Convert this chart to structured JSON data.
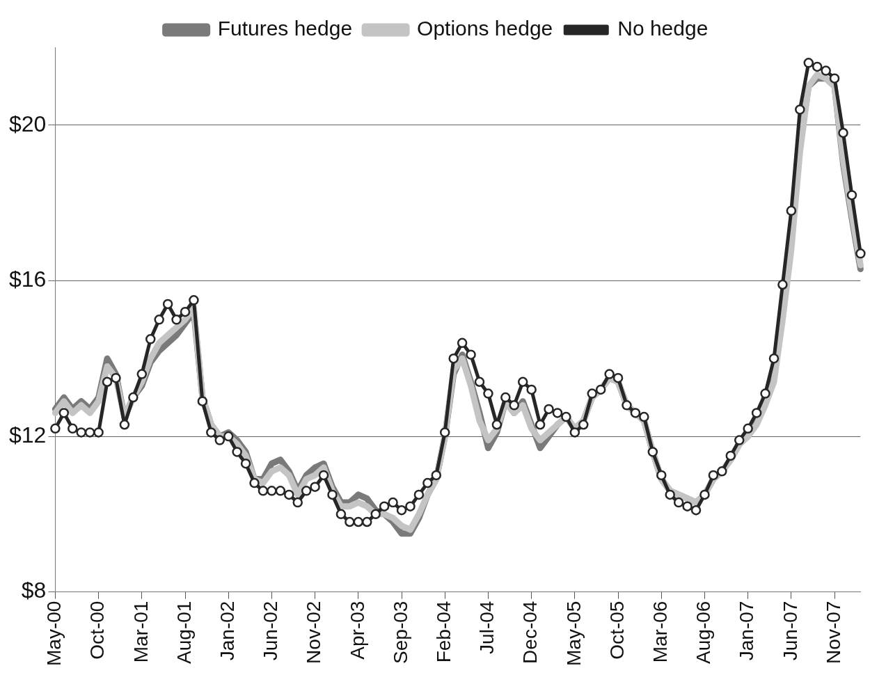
{
  "chart_data": {
    "type": "line",
    "categories": [
      "May-00",
      null,
      null,
      null,
      null,
      "Oct-00",
      null,
      null,
      null,
      null,
      "Mar-01",
      null,
      null,
      null,
      null,
      "Aug-01",
      null,
      null,
      null,
      null,
      "Jan-02",
      null,
      null,
      null,
      null,
      "Jun-02",
      null,
      null,
      null,
      null,
      "Nov-02",
      null,
      null,
      null,
      null,
      "Apr-03",
      null,
      null,
      null,
      null,
      "Sep-03",
      null,
      null,
      null,
      null,
      "Feb-04",
      null,
      null,
      null,
      null,
      "Jul-04",
      null,
      null,
      null,
      null,
      "Dec-04",
      null,
      null,
      null,
      null,
      "May-05",
      null,
      null,
      null,
      null,
      "Oct-05",
      null,
      null,
      null,
      null,
      "Mar-06",
      null,
      null,
      null,
      null,
      "Aug-06",
      null,
      null,
      null,
      null,
      "Jan-07",
      null,
      null,
      null,
      null,
      "Jun-07",
      null,
      null,
      null,
      null,
      "Nov-07",
      null,
      null,
      null
    ],
    "series": [
      {
        "name": "Futures hedge",
        "color": "#7a7a7a",
        "values": [
          12.7,
          13.0,
          12.7,
          12.9,
          12.7,
          13.0,
          14.0,
          13.6,
          12.5,
          13.0,
          13.3,
          13.9,
          14.2,
          14.4,
          14.6,
          14.9,
          15.2,
          13.0,
          12.3,
          12.0,
          12.1,
          11.9,
          11.6,
          10.9,
          10.9,
          11.3,
          11.4,
          11.1,
          10.6,
          11.0,
          11.2,
          11.3,
          10.7,
          10.3,
          10.3,
          10.5,
          10.4,
          10.1,
          10.0,
          9.8,
          9.5,
          9.5,
          9.9,
          10.5,
          10.9,
          12.0,
          13.6,
          14.1,
          13.4,
          12.6,
          11.7,
          12.1,
          12.9,
          12.6,
          12.9,
          12.3,
          11.7,
          12.0,
          12.3,
          12.5,
          12.2,
          12.4,
          13.0,
          13.2,
          13.5,
          13.4,
          12.8,
          12.6,
          12.4,
          11.6,
          10.9,
          10.6,
          10.5,
          10.4,
          10.3,
          10.5,
          10.9,
          11.1,
          11.4,
          11.8,
          12.0,
          12.4,
          12.9,
          13.6,
          15.3,
          17.0,
          19.5,
          21.0,
          21.2,
          21.2,
          21.0,
          19.0,
          17.6,
          16.3
        ]
      },
      {
        "name": "Options hedge",
        "color": "#c4c4c4",
        "values": [
          12.6,
          12.9,
          12.6,
          12.8,
          12.6,
          12.9,
          13.8,
          13.5,
          12.5,
          13.0,
          13.4,
          14.0,
          14.4,
          14.6,
          14.8,
          15.0,
          15.3,
          13.0,
          12.3,
          12.0,
          12.0,
          11.8,
          11.5,
          10.9,
          10.8,
          11.1,
          11.2,
          11.0,
          10.5,
          10.9,
          11.0,
          11.2,
          10.6,
          10.2,
          10.2,
          10.3,
          10.2,
          10.0,
          10.0,
          9.9,
          9.7,
          9.6,
          10.0,
          10.5,
          10.9,
          12.0,
          13.7,
          14.0,
          13.3,
          12.4,
          11.9,
          12.2,
          12.9,
          12.6,
          12.8,
          12.2,
          11.9,
          12.1,
          12.3,
          12.5,
          12.2,
          12.4,
          13.0,
          13.2,
          13.5,
          13.4,
          12.8,
          12.6,
          12.4,
          11.6,
          10.9,
          10.6,
          10.5,
          10.4,
          10.3,
          10.5,
          10.9,
          11.1,
          11.4,
          11.8,
          12.0,
          12.3,
          12.8,
          13.4,
          15.0,
          16.8,
          19.3,
          21.0,
          21.3,
          21.2,
          21.0,
          19.1,
          17.7,
          16.4
        ]
      },
      {
        "name": "No hedge",
        "color": "#262626",
        "marker": "circle",
        "values": [
          12.2,
          12.6,
          12.2,
          12.1,
          12.1,
          12.1,
          13.4,
          13.5,
          12.3,
          13.0,
          13.6,
          14.5,
          15.0,
          15.4,
          15.0,
          15.2,
          15.5,
          12.9,
          12.1,
          11.9,
          12.0,
          11.6,
          11.3,
          10.8,
          10.6,
          10.6,
          10.6,
          10.5,
          10.3,
          10.6,
          10.7,
          11.0,
          10.5,
          10.0,
          9.8,
          9.8,
          9.8,
          10.0,
          10.2,
          10.3,
          10.1,
          10.2,
          10.5,
          10.8,
          11.0,
          12.1,
          14.0,
          14.4,
          14.1,
          13.4,
          13.1,
          12.3,
          13.0,
          12.8,
          13.4,
          13.2,
          12.3,
          12.7,
          12.6,
          12.5,
          12.1,
          12.3,
          13.1,
          13.2,
          13.6,
          13.5,
          12.8,
          12.6,
          12.5,
          11.6,
          11.0,
          10.5,
          10.3,
          10.2,
          10.1,
          10.5,
          11.0,
          11.1,
          11.5,
          11.9,
          12.2,
          12.6,
          13.1,
          14.0,
          15.9,
          17.8,
          20.4,
          21.6,
          21.5,
          21.4,
          21.2,
          19.8,
          18.2,
          16.7
        ]
      }
    ],
    "ylim": [
      8,
      22
    ],
    "yticks": [
      {
        "value": 8,
        "label": "$8"
      },
      {
        "value": 12,
        "label": "$12"
      },
      {
        "value": 16,
        "label": "$16"
      },
      {
        "value": 20,
        "label": "$20"
      }
    ],
    "grid": "y",
    "legend": "top"
  }
}
